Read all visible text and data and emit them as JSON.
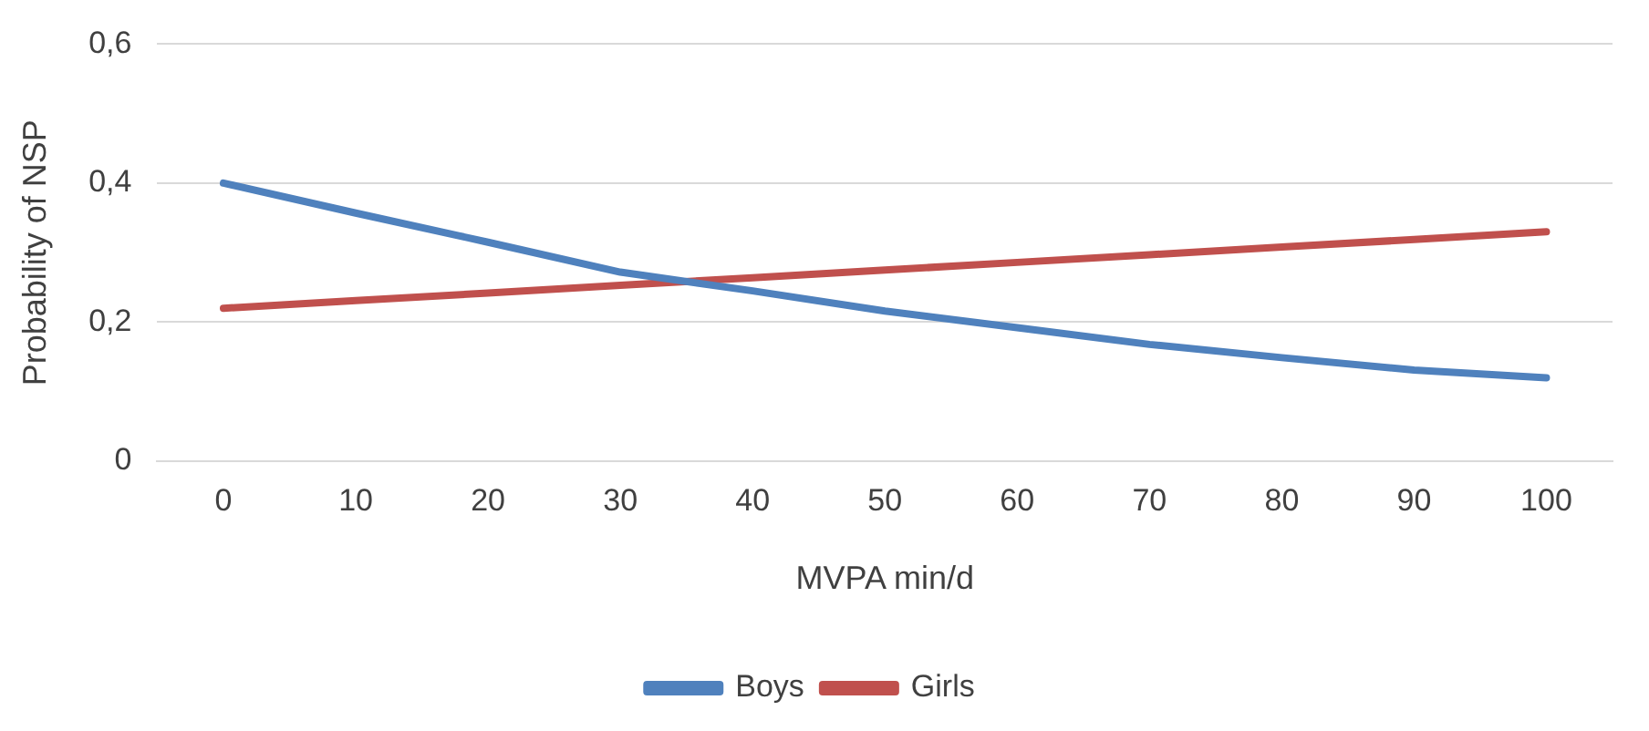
{
  "chart_data": {
    "type": "line",
    "xlabel": "MVPA min/d",
    "ylabel": "Probability of NSP",
    "categories": [
      "0",
      "10",
      "20",
      "30",
      "40",
      "50",
      "60",
      "70",
      "80",
      "90",
      "100"
    ],
    "series": [
      {
        "name": "Boys",
        "color": "#4f81bd",
        "values": [
          0.4,
          0.357,
          0.315,
          0.272,
          0.245,
          0.216,
          0.192,
          0.168,
          0.149,
          0.131,
          0.12
        ]
      },
      {
        "name": "Girls",
        "color": "#c0504d",
        "values": [
          0.22,
          0.231,
          0.242,
          0.253,
          0.264,
          0.275,
          0.286,
          0.297,
          0.308,
          0.319,
          0.33
        ]
      }
    ],
    "ylim": [
      0,
      0.6
    ],
    "yticks": [
      {
        "value": 0,
        "label": "0"
      },
      {
        "value": 0.2,
        "label": "0,2"
      },
      {
        "value": 0.4,
        "label": "0,4"
      },
      {
        "value": 0.6,
        "label": "0,6"
      }
    ],
    "grid": "y",
    "legend": "bottom",
    "marker": "none",
    "line_style": "solid"
  }
}
